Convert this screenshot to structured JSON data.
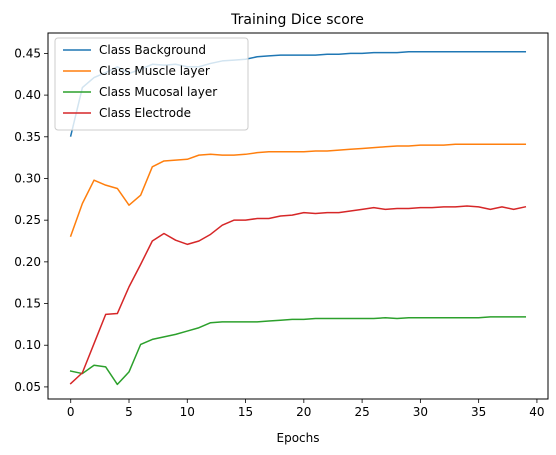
{
  "chart_data": {
    "type": "line",
    "title": "Training Dice score",
    "xlabel": "Epochs",
    "ylabel": "",
    "xlim": [
      -1.95,
      40.95
    ],
    "ylim": [
      0.0355,
      0.4745
    ],
    "xticks": [
      0,
      5,
      10,
      15,
      20,
      25,
      30,
      35,
      40
    ],
    "yticks": [
      0.05,
      0.1,
      0.15,
      0.2,
      0.25,
      0.3,
      0.35,
      0.4,
      0.45
    ],
    "grid": false,
    "legend_position": "upper-left",
    "x": [
      0,
      1,
      2,
      3,
      4,
      5,
      6,
      7,
      8,
      9,
      10,
      11,
      12,
      13,
      14,
      15,
      16,
      17,
      18,
      19,
      20,
      21,
      22,
      23,
      24,
      25,
      26,
      27,
      28,
      29,
      30,
      31,
      32,
      33,
      34,
      35,
      36,
      37,
      38,
      39
    ],
    "series": [
      {
        "name": "Class Background",
        "color": "#1f77b4",
        "values": [
          0.351,
          0.409,
          0.421,
          0.427,
          0.434,
          0.426,
          0.431,
          0.437,
          0.436,
          0.437,
          0.434,
          0.434,
          0.438,
          0.441,
          0.442,
          0.443,
          0.446,
          0.447,
          0.448,
          0.448,
          0.448,
          0.448,
          0.449,
          0.449,
          0.45,
          0.45,
          0.451,
          0.451,
          0.451,
          0.452,
          0.452,
          0.452,
          0.452,
          0.452,
          0.452,
          0.452,
          0.452,
          0.452,
          0.452,
          0.452
        ]
      },
      {
        "name": "Class Muscle layer",
        "color": "#ff7f0e",
        "values": [
          0.231,
          0.27,
          0.298,
          0.292,
          0.288,
          0.268,
          0.28,
          0.314,
          0.321,
          0.322,
          0.323,
          0.328,
          0.329,
          0.328,
          0.328,
          0.329,
          0.331,
          0.332,
          0.332,
          0.332,
          0.332,
          0.333,
          0.333,
          0.334,
          0.335,
          0.336,
          0.337,
          0.338,
          0.339,
          0.339,
          0.34,
          0.34,
          0.34,
          0.341,
          0.341,
          0.341,
          0.341,
          0.341,
          0.341,
          0.341
        ]
      },
      {
        "name": "Class Mucosal layer",
        "color": "#2ca02c",
        "values": [
          0.069,
          0.066,
          0.076,
          0.074,
          0.053,
          0.068,
          0.101,
          0.107,
          0.11,
          0.113,
          0.117,
          0.121,
          0.127,
          0.128,
          0.128,
          0.128,
          0.128,
          0.129,
          0.13,
          0.131,
          0.131,
          0.132,
          0.132,
          0.132,
          0.132,
          0.132,
          0.132,
          0.133,
          0.132,
          0.133,
          0.133,
          0.133,
          0.133,
          0.133,
          0.133,
          0.133,
          0.134,
          0.134,
          0.134,
          0.134
        ]
      },
      {
        "name": "Class Electrode",
        "color": "#d62728",
        "values": [
          0.054,
          0.067,
          0.102,
          0.137,
          0.138,
          0.17,
          0.197,
          0.225,
          0.234,
          0.226,
          0.221,
          0.225,
          0.233,
          0.244,
          0.25,
          0.25,
          0.252,
          0.252,
          0.255,
          0.256,
          0.259,
          0.258,
          0.259,
          0.259,
          0.261,
          0.263,
          0.265,
          0.263,
          0.264,
          0.264,
          0.265,
          0.265,
          0.266,
          0.266,
          0.267,
          0.266,
          0.263,
          0.266,
          0.263,
          0.266
        ]
      }
    ]
  }
}
